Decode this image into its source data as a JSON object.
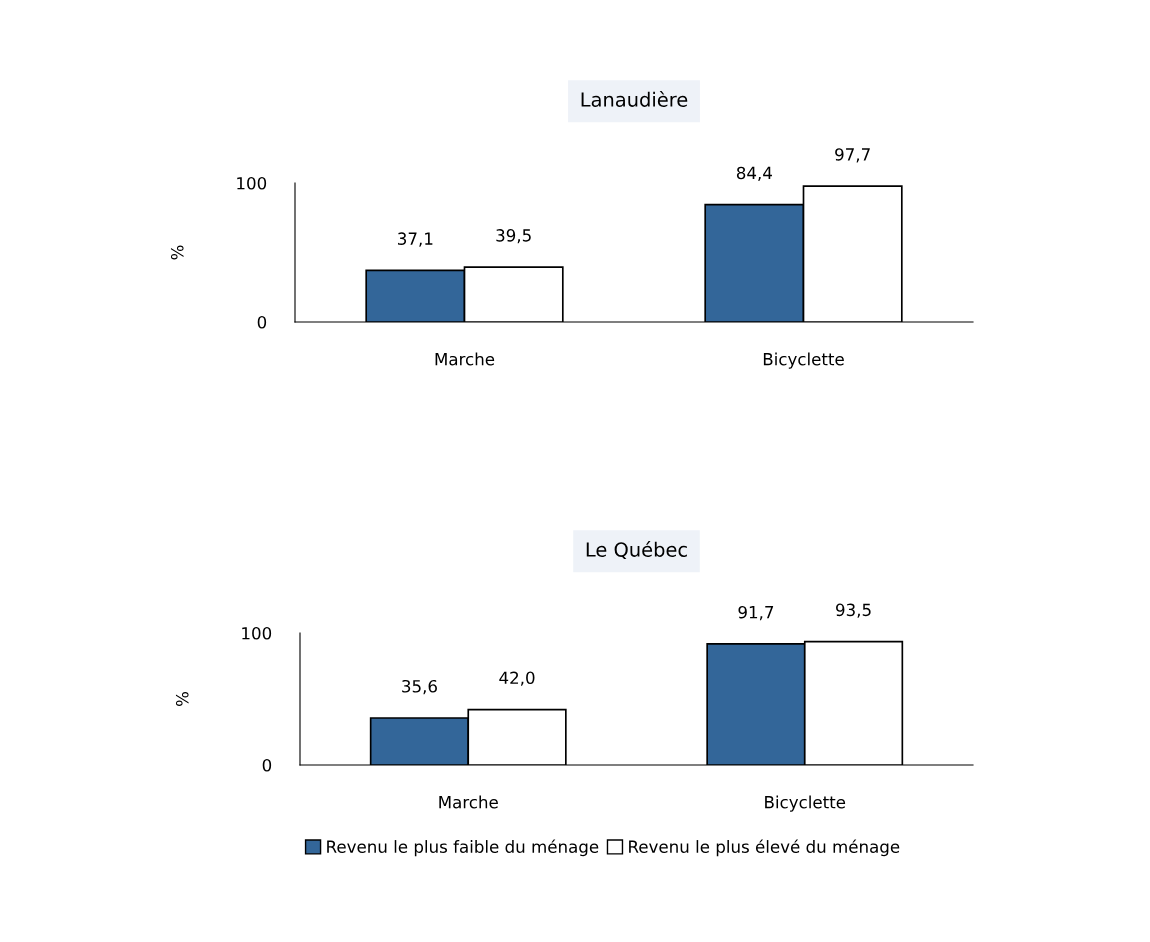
{
  "chart_data": [
    {
      "type": "bar",
      "title": "Lanaudière",
      "ylabel": "%",
      "categories": [
        "Marche",
        "Bicyclette"
      ],
      "series": [
        {
          "color": "#336699",
          "values": [
            37.1,
            84.4
          ],
          "value_labels": [
            "37,1",
            "84,4"
          ]
        },
        {
          "color": "#ffffff",
          "values": [
            39.5,
            97.7
          ],
          "value_labels": [
            "39,5",
            "97,7"
          ]
        }
      ],
      "ylim": [
        0,
        100
      ],
      "yticks": [
        0,
        100
      ],
      "grid": false
    },
    {
      "type": "bar",
      "title": "Le Québec",
      "ylabel": "%",
      "categories": [
        "Marche",
        "Bicyclette"
      ],
      "series": [
        {
          "name": "Revenu le plus faible du ménage",
          "color": "#336699",
          "values": [
            35.6,
            91.7
          ],
          "value_labels": [
            "35,6",
            "91,7"
          ]
        },
        {
          "name": "Revenu le plus élevé du ménage",
          "color": "#ffffff",
          "values": [
            42.0,
            93.5
          ],
          "value_labels": [
            "42,0",
            "93,5"
          ]
        }
      ],
      "ylim": [
        0,
        100
      ],
      "yticks": [
        0,
        100
      ],
      "grid": false,
      "legend": "bottom"
    }
  ]
}
